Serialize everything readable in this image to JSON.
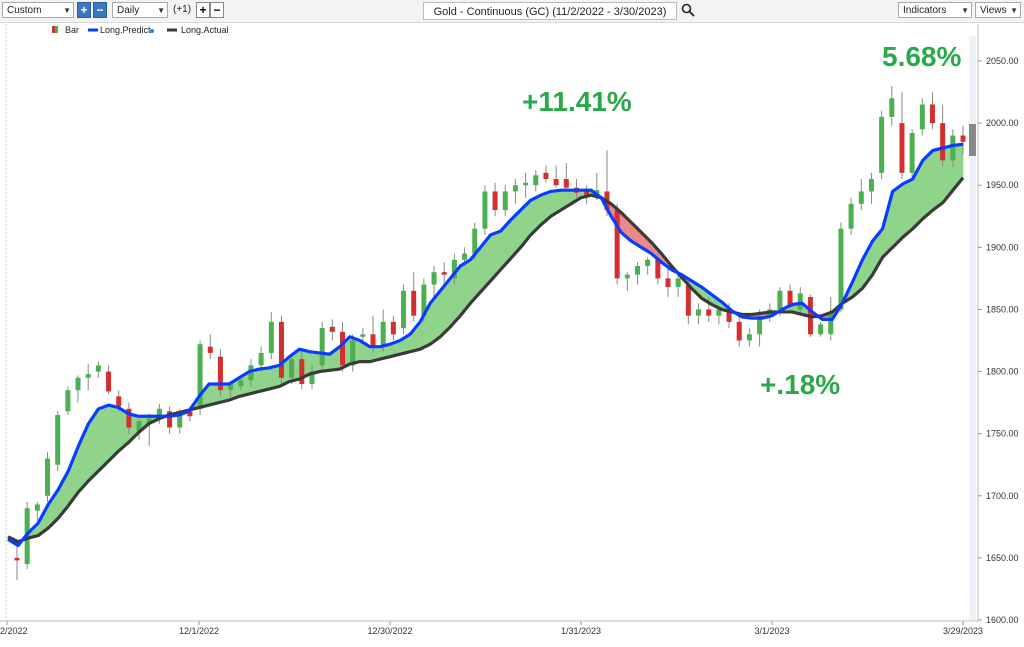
{
  "toolbar": {
    "period_value": "Custom",
    "interval_value": "Daily",
    "offset_label": "(+1)",
    "title": "Gold - Continuous (GC) (11/2/2022 - 3/30/2023)",
    "indicators_label": "Indicators",
    "views_label": "Views"
  },
  "legend": [
    {
      "label": "Bar",
      "icon": "bar-swatch-icon"
    },
    {
      "label": "Long.Predict",
      "icon": "line-swatch-icon",
      "color": "#0a3cff"
    },
    {
      "label": "Long.Actual",
      "icon": "line-swatch-icon",
      "color": "#3a3a3a"
    }
  ],
  "annotations": [
    {
      "text": "+11.41%",
      "color": "#2ba84a"
    },
    {
      "text": "+.18%",
      "color": "#2ba84a"
    },
    {
      "text": "5.68%",
      "color": "#2ba84a"
    }
  ],
  "chart_data": {
    "type": "candlestick",
    "x_ticks": [
      "2/2022",
      "12/1/2022",
      "12/30/2022",
      "1/31/2023",
      "3/1/2023",
      "3/29/2023"
    ],
    "y_ticks": [
      1600,
      1650,
      1700,
      1750,
      1800,
      1850,
      1900,
      1950,
      2000,
      2050
    ],
    "y_tick_labels": [
      "1600.00",
      "1650.00",
      "1700.00",
      "1750.00",
      "1800.00",
      "1850.00",
      "1900.00",
      "1950.00",
      "2000.00",
      "2050.00"
    ],
    "ylim": [
      1600,
      2080
    ],
    "colors": {
      "up": "#4caf50",
      "down": "#d32f2f",
      "predict": "#0a3cff",
      "actual": "#3a3a3a",
      "fill_up": "#8fd48a",
      "fill_down": "#e88a8a"
    },
    "series": [
      {
        "name": "Long.Predict",
        "values": [
          1665,
          1660,
          1670,
          1678,
          1693,
          1705,
          1720,
          1740,
          1758,
          1770,
          1773,
          1771,
          1766,
          1764,
          1764,
          1764,
          1764,
          1765,
          1768,
          1780,
          1790,
          1790,
          1790,
          1795,
          1800,
          1802,
          1803,
          1805,
          1812,
          1818,
          1816,
          1815,
          1814,
          1820,
          1828,
          1825,
          1820,
          1820,
          1822,
          1825,
          1830,
          1840,
          1855,
          1865,
          1875,
          1885,
          1890,
          1900,
          1910,
          1913,
          1922,
          1930,
          1938,
          1942,
          1945,
          1946,
          1946,
          1946,
          1946,
          1940,
          1925,
          1912,
          1905,
          1900,
          1895,
          1888,
          1882,
          1878,
          1873,
          1868,
          1862,
          1856,
          1849,
          1844,
          1843,
          1843,
          1845,
          1850,
          1854,
          1855,
          1848,
          1842,
          1842,
          1855,
          1872,
          1890,
          1905,
          1915,
          1945,
          1951,
          1955,
          1970,
          1978,
          1980,
          1982,
          1983
        ]
      },
      {
        "name": "Long.Actual",
        "values": [
          1667,
          1663,
          1666,
          1668,
          1674,
          1682,
          1692,
          1703,
          1712,
          1720,
          1728,
          1736,
          1743,
          1751,
          1758,
          1762,
          1765,
          1767,
          1769,
          1771,
          1773,
          1775,
          1777,
          1780,
          1782,
          1784,
          1786,
          1788,
          1792,
          1794,
          1798,
          1800,
          1801,
          1802,
          1806,
          1808,
          1808,
          1810,
          1812,
          1814,
          1816,
          1818,
          1822,
          1828,
          1836,
          1845,
          1855,
          1864,
          1873,
          1882,
          1891,
          1900,
          1910,
          1918,
          1925,
          1930,
          1935,
          1940,
          1942,
          1940,
          1935,
          1928,
          1920,
          1912,
          1904,
          1895,
          1885,
          1876,
          1867,
          1859,
          1854,
          1850,
          1848,
          1846,
          1846,
          1847,
          1848,
          1848,
          1848,
          1846,
          1844,
          1845,
          1848,
          1855,
          1860,
          1867,
          1878,
          1892,
          1900,
          1908,
          1915,
          1923,
          1930,
          1936,
          1946,
          1956
        ]
      }
    ],
    "candles": [
      {
        "o": 1650,
        "h": 1660,
        "l": 1632,
        "c": 1648
      },
      {
        "o": 1645,
        "h": 1695,
        "l": 1641,
        "c": 1690
      },
      {
        "o": 1688,
        "h": 1695,
        "l": 1680,
        "c": 1693
      },
      {
        "o": 1700,
        "h": 1735,
        "l": 1695,
        "c": 1730
      },
      {
        "o": 1725,
        "h": 1768,
        "l": 1720,
        "c": 1765
      },
      {
        "o": 1768,
        "h": 1788,
        "l": 1765,
        "c": 1785
      },
      {
        "o": 1785,
        "h": 1797,
        "l": 1775,
        "c": 1795
      },
      {
        "o": 1795,
        "h": 1806,
        "l": 1785,
        "c": 1798
      },
      {
        "o": 1800,
        "h": 1808,
        "l": 1795,
        "c": 1805
      },
      {
        "o": 1800,
        "h": 1805,
        "l": 1782,
        "c": 1784
      },
      {
        "o": 1780,
        "h": 1785,
        "l": 1768,
        "c": 1772
      },
      {
        "o": 1770,
        "h": 1775,
        "l": 1750,
        "c": 1755
      },
      {
        "o": 1752,
        "h": 1762,
        "l": 1745,
        "c": 1760
      },
      {
        "o": 1758,
        "h": 1766,
        "l": 1740,
        "c": 1762
      },
      {
        "o": 1762,
        "h": 1774,
        "l": 1758,
        "c": 1770
      },
      {
        "o": 1768,
        "h": 1772,
        "l": 1750,
        "c": 1755
      },
      {
        "o": 1755,
        "h": 1770,
        "l": 1750,
        "c": 1768
      },
      {
        "o": 1768,
        "h": 1772,
        "l": 1760,
        "c": 1764
      },
      {
        "o": 1770,
        "h": 1825,
        "l": 1765,
        "c": 1822
      },
      {
        "o": 1820,
        "h": 1830,
        "l": 1810,
        "c": 1815
      },
      {
        "o": 1812,
        "h": 1818,
        "l": 1780,
        "c": 1785
      },
      {
        "o": 1785,
        "h": 1792,
        "l": 1780,
        "c": 1790
      },
      {
        "o": 1788,
        "h": 1795,
        "l": 1785,
        "c": 1793
      },
      {
        "o": 1793,
        "h": 1810,
        "l": 1788,
        "c": 1805
      },
      {
        "o": 1805,
        "h": 1820,
        "l": 1800,
        "c": 1815
      },
      {
        "o": 1815,
        "h": 1848,
        "l": 1810,
        "c": 1840
      },
      {
        "o": 1840,
        "h": 1845,
        "l": 1790,
        "c": 1795
      },
      {
        "o": 1795,
        "h": 1815,
        "l": 1790,
        "c": 1810
      },
      {
        "o": 1810,
        "h": 1818,
        "l": 1786,
        "c": 1790
      },
      {
        "o": 1790,
        "h": 1805,
        "l": 1786,
        "c": 1800
      },
      {
        "o": 1805,
        "h": 1840,
        "l": 1800,
        "c": 1835
      },
      {
        "o": 1836,
        "h": 1842,
        "l": 1825,
        "c": 1832
      },
      {
        "o": 1832,
        "h": 1840,
        "l": 1800,
        "c": 1805
      },
      {
        "o": 1805,
        "h": 1830,
        "l": 1800,
        "c": 1825
      },
      {
        "o": 1828,
        "h": 1835,
        "l": 1822,
        "c": 1830
      },
      {
        "o": 1830,
        "h": 1845,
        "l": 1815,
        "c": 1820
      },
      {
        "o": 1820,
        "h": 1850,
        "l": 1816,
        "c": 1840
      },
      {
        "o": 1840,
        "h": 1845,
        "l": 1825,
        "c": 1830
      },
      {
        "o": 1835,
        "h": 1870,
        "l": 1830,
        "c": 1865
      },
      {
        "o": 1865,
        "h": 1880,
        "l": 1840,
        "c": 1845
      },
      {
        "o": 1845,
        "h": 1875,
        "l": 1840,
        "c": 1870
      },
      {
        "o": 1870,
        "h": 1885,
        "l": 1860,
        "c": 1880
      },
      {
        "o": 1880,
        "h": 1888,
        "l": 1870,
        "c": 1878
      },
      {
        "o": 1875,
        "h": 1895,
        "l": 1870,
        "c": 1890
      },
      {
        "o": 1890,
        "h": 1900,
        "l": 1885,
        "c": 1895
      },
      {
        "o": 1895,
        "h": 1920,
        "l": 1890,
        "c": 1915
      },
      {
        "o": 1915,
        "h": 1950,
        "l": 1910,
        "c": 1945
      },
      {
        "o": 1945,
        "h": 1952,
        "l": 1925,
        "c": 1930
      },
      {
        "o": 1930,
        "h": 1950,
        "l": 1925,
        "c": 1945
      },
      {
        "o": 1945,
        "h": 1955,
        "l": 1935,
        "c": 1950
      },
      {
        "o": 1950,
        "h": 1960,
        "l": 1940,
        "c": 1952
      },
      {
        "o": 1950,
        "h": 1962,
        "l": 1945,
        "c": 1958
      },
      {
        "o": 1960,
        "h": 1966,
        "l": 1952,
        "c": 1955
      },
      {
        "o": 1955,
        "h": 1966,
        "l": 1948,
        "c": 1950
      },
      {
        "o": 1955,
        "h": 1968,
        "l": 1945,
        "c": 1948
      },
      {
        "o": 1948,
        "h": 1955,
        "l": 1940,
        "c": 1944
      },
      {
        "o": 1945,
        "h": 1950,
        "l": 1935,
        "c": 1942
      },
      {
        "o": 1942,
        "h": 1960,
        "l": 1938,
        "c": 1946
      },
      {
        "o": 1945,
        "h": 1978,
        "l": 1925,
        "c": 1930
      },
      {
        "o": 1930,
        "h": 1935,
        "l": 1870,
        "c": 1875
      },
      {
        "o": 1875,
        "h": 1880,
        "l": 1865,
        "c": 1878
      },
      {
        "o": 1878,
        "h": 1888,
        "l": 1870,
        "c": 1885
      },
      {
        "o": 1885,
        "h": 1892,
        "l": 1878,
        "c": 1890
      },
      {
        "o": 1890,
        "h": 1895,
        "l": 1870,
        "c": 1875
      },
      {
        "o": 1875,
        "h": 1885,
        "l": 1860,
        "c": 1868
      },
      {
        "o": 1868,
        "h": 1880,
        "l": 1860,
        "c": 1875
      },
      {
        "o": 1870,
        "h": 1875,
        "l": 1838,
        "c": 1845
      },
      {
        "o": 1845,
        "h": 1855,
        "l": 1838,
        "c": 1850
      },
      {
        "o": 1850,
        "h": 1860,
        "l": 1840,
        "c": 1845
      },
      {
        "o": 1845,
        "h": 1852,
        "l": 1838,
        "c": 1850
      },
      {
        "o": 1850,
        "h": 1855,
        "l": 1835,
        "c": 1840
      },
      {
        "o": 1840,
        "h": 1845,
        "l": 1820,
        "c": 1825
      },
      {
        "o": 1825,
        "h": 1835,
        "l": 1820,
        "c": 1830
      },
      {
        "o": 1830,
        "h": 1850,
        "l": 1820,
        "c": 1845
      },
      {
        "o": 1845,
        "h": 1855,
        "l": 1840,
        "c": 1850
      },
      {
        "o": 1850,
        "h": 1868,
        "l": 1845,
        "c": 1865
      },
      {
        "o": 1865,
        "h": 1870,
        "l": 1850,
        "c": 1852
      },
      {
        "o": 1850,
        "h": 1868,
        "l": 1845,
        "c": 1863
      },
      {
        "o": 1860,
        "h": 1862,
        "l": 1828,
        "c": 1830
      },
      {
        "o": 1830,
        "h": 1840,
        "l": 1828,
        "c": 1838
      },
      {
        "o": 1830,
        "h": 1860,
        "l": 1825,
        "c": 1848
      },
      {
        "o": 1850,
        "h": 1920,
        "l": 1848,
        "c": 1915
      },
      {
        "o": 1915,
        "h": 1940,
        "l": 1910,
        "c": 1935
      },
      {
        "o": 1935,
        "h": 1955,
        "l": 1930,
        "c": 1945
      },
      {
        "o": 1945,
        "h": 1960,
        "l": 1935,
        "c": 1955
      },
      {
        "o": 1960,
        "h": 2010,
        "l": 1955,
        "c": 2005
      },
      {
        "o": 2005,
        "h": 2030,
        "l": 1998,
        "c": 2020
      },
      {
        "o": 2000,
        "h": 2025,
        "l": 1955,
        "c": 1960
      },
      {
        "o": 1960,
        "h": 1995,
        "l": 1955,
        "c": 1992
      },
      {
        "o": 1995,
        "h": 2020,
        "l": 1990,
        "c": 2015
      },
      {
        "o": 2015,
        "h": 2025,
        "l": 1995,
        "c": 2000
      },
      {
        "o": 2000,
        "h": 2015,
        "l": 1965,
        "c": 1970
      },
      {
        "o": 1970,
        "h": 1995,
        "l": 1965,
        "c": 1990
      },
      {
        "o": 1990,
        "h": 1998,
        "l": 1975,
        "c": 1985
      }
    ]
  }
}
